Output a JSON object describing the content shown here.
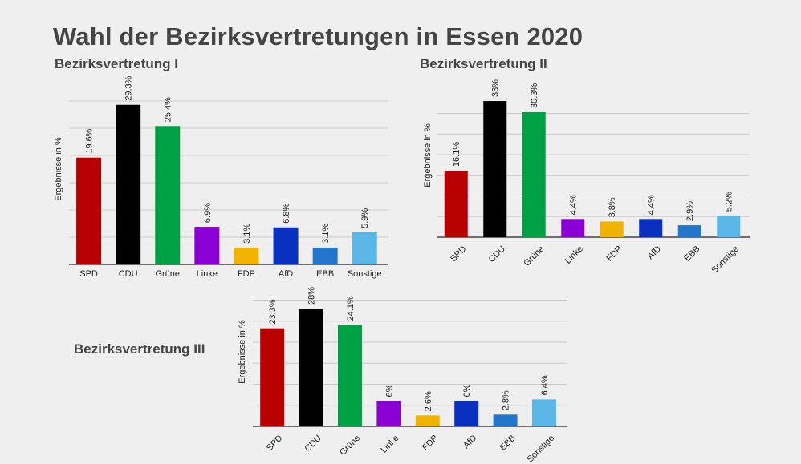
{
  "title": "Wahl der Bezirksvertretungen in Essen 2020",
  "colors": {
    "SPD": "#b80000",
    "CDU": "#000000",
    "Grüne": "#00a044",
    "Linke": "#8a00d4",
    "FDP": "#f0b400",
    "AfD": "#0a30c0",
    "EBB": "#2277cc",
    "Sonstige": "#5ab6e6",
    "grid": "#c8c8c8",
    "axis": "#222222"
  },
  "chart_data": [
    {
      "type": "bar",
      "title": "Bezirksvertretung I",
      "xlabel": "",
      "ylabel": "Ergebnisse in %",
      "categories": [
        "SPD",
        "CDU",
        "Grüne",
        "Linke",
        "FDP",
        "AfD",
        "EBB",
        "Sonstige"
      ],
      "values": [
        19.6,
        29.3,
        25.4,
        6.9,
        3.1,
        6.8,
        3.1,
        5.9
      ],
      "labels": [
        "19.6%",
        "29.3%",
        "25.4%",
        "6.9%",
        "3.1%",
        "6.8%",
        "3.1%",
        "5.9%"
      ],
      "ylim": [
        0,
        30
      ],
      "grid": true,
      "tick_rotation": 0
    },
    {
      "type": "bar",
      "title": "Bezirksvertretung II",
      "xlabel": "",
      "ylabel": "Ergebnisse in %",
      "categories": [
        "SPD",
        "CDU",
        "Grüne",
        "Linke",
        "FDP",
        "AfD",
        "EBB",
        "Sonstige"
      ],
      "values": [
        16.1,
        33,
        30.3,
        4.4,
        3.8,
        4.4,
        2.9,
        5.2
      ],
      "labels": [
        "16.1%",
        "33%",
        "30.3%",
        "4.4%",
        "3.8%",
        "4.4%",
        "2.9%",
        "5.2%"
      ],
      "ylim": [
        0,
        35
      ],
      "grid": true,
      "tick_rotation": -45
    },
    {
      "type": "bar",
      "title": "Bezirksvertretung III",
      "xlabel": "",
      "ylabel": "Ergebnisse in %",
      "categories": [
        "SPD",
        "CDU",
        "Grüne",
        "Linke",
        "FDP",
        "AfD",
        "EBB",
        "Sonstige"
      ],
      "values": [
        23.3,
        28,
        24.1,
        6,
        2.6,
        6,
        2.8,
        6.4
      ],
      "labels": [
        "23.3%",
        "28%",
        "24.1%",
        "6%",
        "2.6%",
        "6%",
        "2.8%",
        "6.4%"
      ],
      "ylim": [
        0,
        30
      ],
      "grid": true,
      "tick_rotation": -45
    }
  ]
}
